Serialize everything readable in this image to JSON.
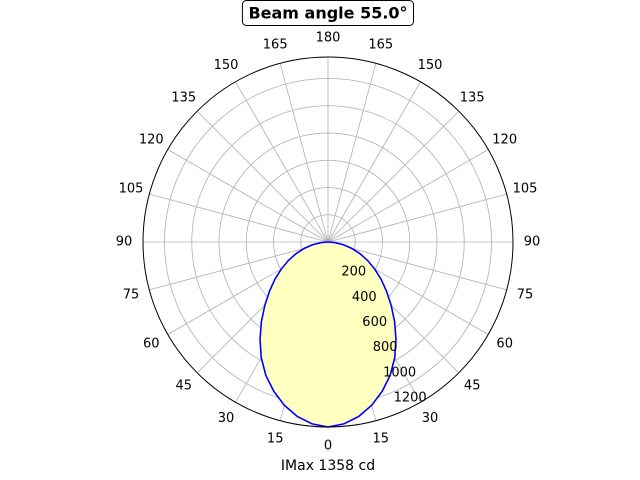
{
  "chart_data": {
    "type": "line",
    "projection": "polar",
    "title": "Beam angle 55.0°",
    "xlabel": "IMax 1358 cd",
    "angle_tick_labels": [
      "0",
      "15",
      "30",
      "45",
      "60",
      "75",
      "90",
      "105",
      "120",
      "135",
      "150",
      "165",
      "180",
      "165",
      "150",
      "135",
      "120",
      "105",
      "90",
      "75",
      "60",
      "45",
      "30",
      "15"
    ],
    "radial_tick_labels": [
      "200",
      "400",
      "600",
      "800",
      "1000",
      "1200"
    ],
    "rlim": [
      0,
      1358
    ],
    "grid": true,
    "series": [
      {
        "color": "#0000ff",
        "fill": "#ffffbf",
        "x": [
          -90,
          -85,
          -80,
          -75,
          -70,
          -65,
          -60,
          -55,
          -50,
          -45,
          -40,
          -35,
          -30,
          -25,
          -20,
          -15,
          -10,
          -5,
          0,
          5,
          10,
          15,
          20,
          25,
          30,
          35,
          40,
          45,
          50,
          55,
          60,
          65,
          70,
          75,
          80,
          85,
          90
        ],
        "values": [
          0,
          50,
          115,
          180,
          250,
          320,
          395,
          475,
          560,
          655,
          760,
          870,
          980,
          1080,
          1165,
          1240,
          1300,
          1340,
          1358,
          1340,
          1300,
          1240,
          1165,
          1080,
          980,
          870,
          760,
          655,
          560,
          475,
          395,
          320,
          250,
          180,
          115,
          50,
          0
        ]
      }
    ]
  }
}
